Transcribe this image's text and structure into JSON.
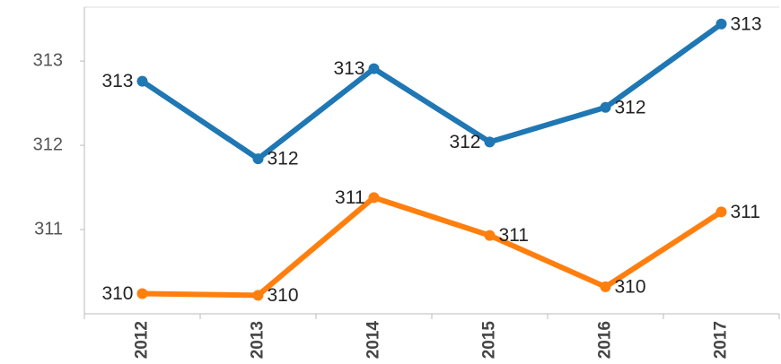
{
  "chart_data": {
    "type": "line",
    "categories": [
      "2012",
      "2013",
      "2014",
      "2015",
      "2016",
      "2017"
    ],
    "series": [
      {
        "color": "#1f77b4",
        "values": [
          312.76,
          311.84,
          312.91,
          312.04,
          312.45,
          313.44
        ],
        "value_labels": [
          "313",
          "312",
          "313",
          "312",
          "312",
          "313"
        ]
      },
      {
        "color": "#ff7f0e",
        "values": [
          310.24,
          310.22,
          311.38,
          310.93,
          310.32,
          311.21
        ],
        "value_labels": [
          "310",
          "310",
          "311",
          "311",
          "310",
          "311"
        ]
      }
    ],
    "ylim": [
      310,
      313.64
    ],
    "yticks": [
      311,
      312,
      313
    ],
    "grid": false
  }
}
